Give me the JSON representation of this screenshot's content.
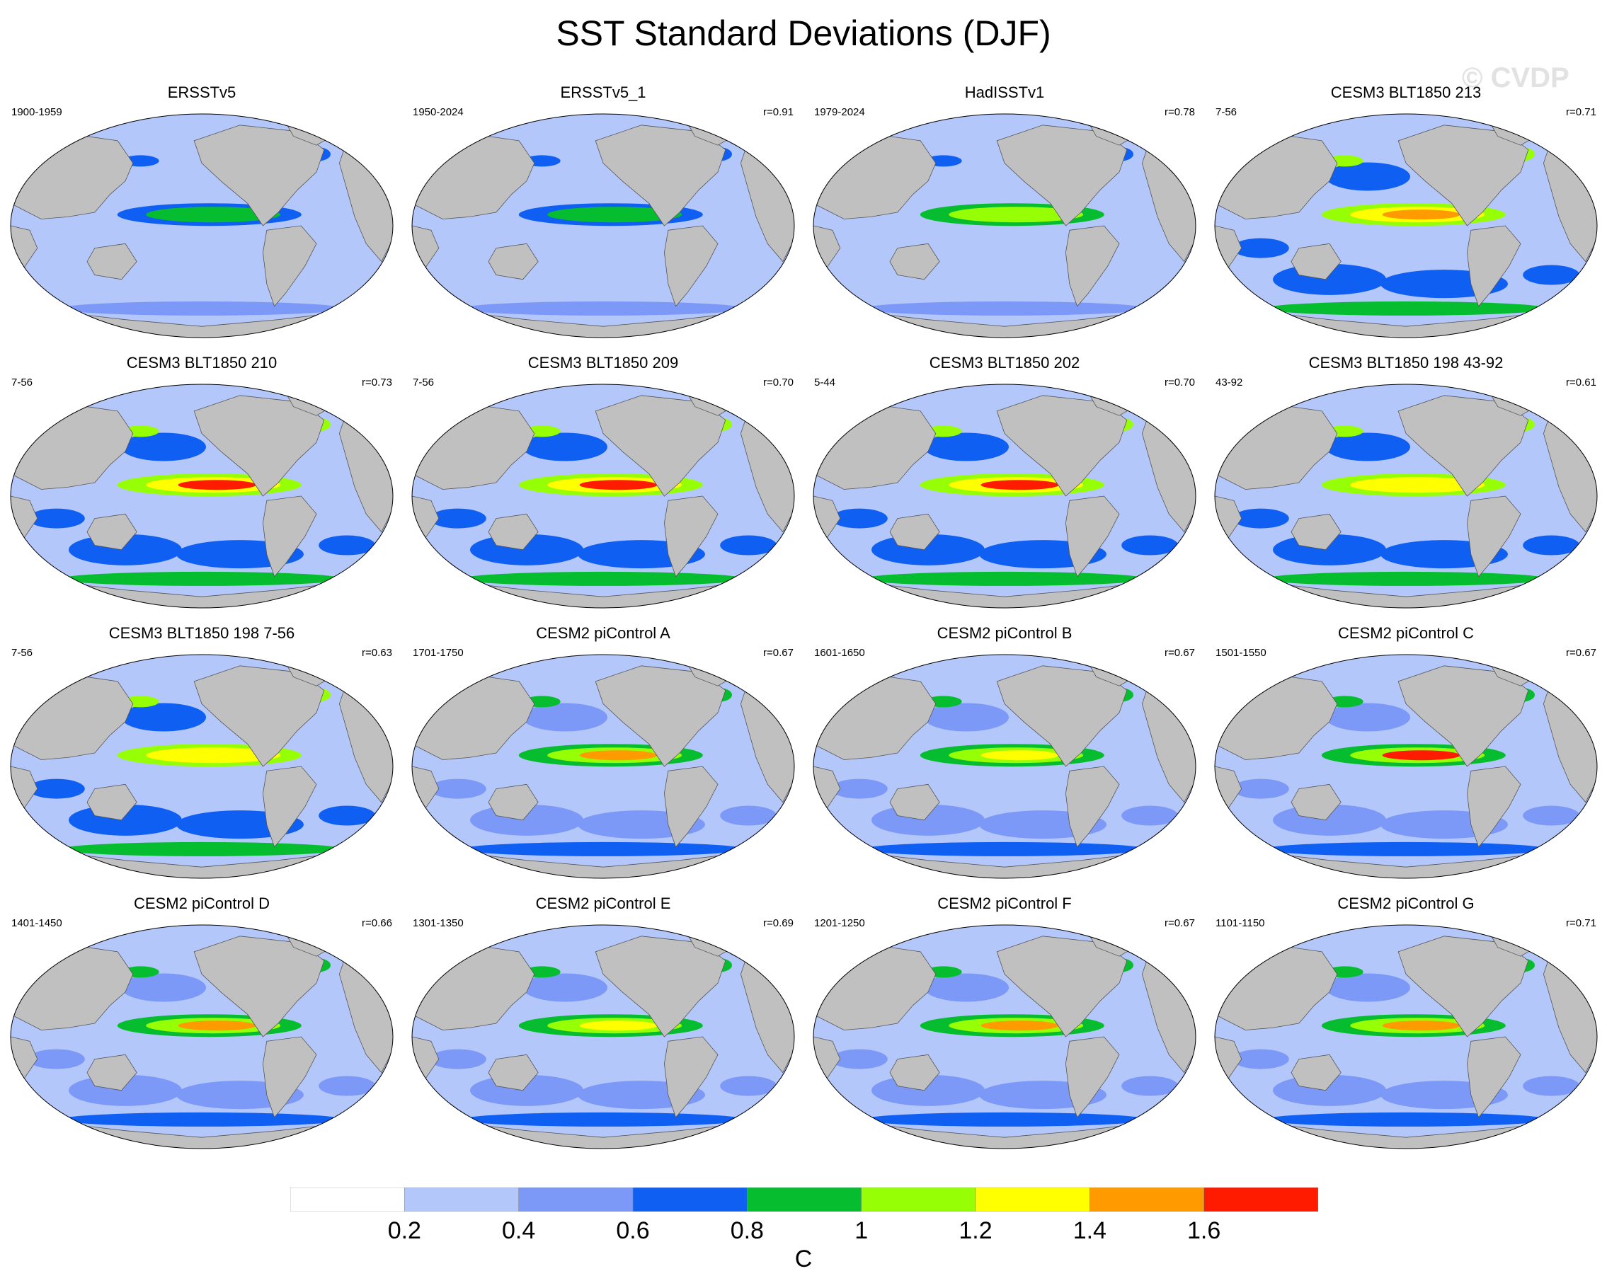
{
  "title": "SST Standard Deviations (DJF)",
  "watermark": "© CVDP",
  "colors": {
    "ocean_bins": [
      "#ffffff",
      "#b4c7fa",
      "#7c99f7",
      "#0f5ff2",
      "#05bd2e",
      "#96ff06",
      "#ffff00",
      "#ff9a00",
      "#ff1b00"
    ],
    "land": "#c0c0c0"
  },
  "panels": [
    {
      "title": "ERSSTv5",
      "period": "1900-1959",
      "r": ""
    },
    {
      "title": "ERSSTv5_1",
      "period": "1950-2024",
      "r": "r=0.91"
    },
    {
      "title": "HadISSTv1",
      "period": "1979-2024",
      "r": "r=0.78"
    },
    {
      "title": "CESM3 BLT1850 213",
      "period": "7-56",
      "r": "r=0.71"
    },
    {
      "title": "CESM3 BLT1850 210",
      "period": "7-56",
      "r": "r=0.73"
    },
    {
      "title": "CESM3 BLT1850 209",
      "period": "7-56",
      "r": "r=0.70"
    },
    {
      "title": "CESM3 BLT1850 202",
      "period": "5-44",
      "r": "r=0.70"
    },
    {
      "title": "CESM3 BLT1850 198 43-92",
      "period": "43-92",
      "r": "r=0.61"
    },
    {
      "title": "CESM3 BLT1850 198 7-56",
      "period": "7-56",
      "r": "r=0.63"
    },
    {
      "title": "CESM2 piControl A",
      "period": "1701-1750",
      "r": "r=0.67"
    },
    {
      "title": "CESM2 piControl B",
      "period": "1601-1650",
      "r": "r=0.67"
    },
    {
      "title": "CESM2 piControl C",
      "period": "1501-1550",
      "r": "r=0.67"
    },
    {
      "title": "CESM2 piControl D",
      "period": "1401-1450",
      "r": "r=0.66"
    },
    {
      "title": "CESM2 piControl E",
      "period": "1301-1350",
      "r": "r=0.69"
    },
    {
      "title": "CESM2 piControl F",
      "period": "1201-1250",
      "r": "r=0.67"
    },
    {
      "title": "CESM2 piControl G",
      "period": "1101-1150",
      "r": "r=0.71"
    }
  ],
  "colorbar": {
    "labels": [
      "0.2",
      "0.4",
      "0.6",
      "0.8",
      "1",
      "1.2",
      "1.4",
      "1.6"
    ],
    "unit": "C"
  }
}
